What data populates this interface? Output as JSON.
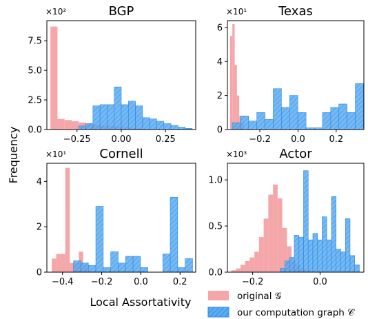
{
  "figure": {
    "ylabel": "Frequency",
    "xlabel": "Local Assortativity",
    "legend": [
      {
        "label": "original 𝒢",
        "color": "#f4a6a9",
        "hatch": false
      },
      {
        "label": "our computation graph 𝒞",
        "color": "#5aaef5",
        "hatch": true
      }
    ]
  },
  "colors": {
    "original_fill": "#f4a6a9",
    "ours_fill": "#5aaef5",
    "ours_edge": "#2e86de",
    "hatch": "#2a7fd8"
  },
  "chart_data": [
    {
      "type": "bar",
      "title": "BGP",
      "multiplier": "×10²",
      "xlim": [
        -0.42,
        0.42
      ],
      "ylim": [
        0,
        9.2
      ],
      "xticks": [
        -0.25,
        0.0,
        0.25
      ],
      "xtick_labels": [
        "−0.25",
        "0.00",
        "0.25"
      ],
      "yticks": [
        0,
        2.5,
        5.0,
        7.5
      ],
      "ytick_labels": [
        "0.0",
        "2.5",
        "5.0",
        "7.5"
      ],
      "series": [
        {
          "name": "original 𝒢",
          "bin_width": 0.04,
          "bins": [
            -0.4,
            -0.36,
            -0.32,
            -0.28,
            -0.24,
            -0.2,
            -0.16,
            -0.12,
            -0.08,
            -0.04,
            0.0,
            0.04,
            0.08
          ],
          "values": [
            8.7,
            0.9,
            0.8,
            0.7,
            0.6,
            0.5,
            0.4,
            0.35,
            0.3,
            0.25,
            0.2,
            0.15,
            0.1
          ]
        },
        {
          "name": "our computation graph 𝒞",
          "bin_width": 0.04,
          "bins": [
            -0.24,
            -0.2,
            -0.16,
            -0.12,
            -0.08,
            -0.04,
            0.0,
            0.04,
            0.08,
            0.12,
            0.16,
            0.2,
            0.24,
            0.28,
            0.32,
            0.36
          ],
          "values": [
            0.3,
            0.5,
            2.0,
            2.1,
            2.1,
            3.6,
            2.1,
            2.4,
            2.0,
            1.0,
            0.9,
            0.7,
            0.5,
            0.35,
            0.2,
            0.1
          ]
        }
      ]
    },
    {
      "type": "bar",
      "title": "Texas",
      "multiplier": "×10¹",
      "xlim": [
        -0.37,
        0.345
      ],
      "ylim": [
        0,
        6.4
      ],
      "xticks": [
        -0.2,
        0.0,
        0.2
      ],
      "xtick_labels": [
        "−0.2",
        "0.0",
        "0.2"
      ],
      "yticks": [
        0,
        2,
        4,
        6
      ],
      "ytick_labels": [
        "0",
        "2",
        "4",
        "6"
      ],
      "series": [
        {
          "name": "original 𝒢",
          "bin_width": 0.012,
          "bins": [
            -0.356,
            -0.344,
            -0.332,
            -0.32,
            -0.308,
            -0.296
          ],
          "values": [
            5.5,
            6.2,
            3.8,
            2.0,
            0.8,
            0.4
          ]
        },
        {
          "name": "our computation graph 𝒞",
          "bin_width": 0.043,
          "bins": [
            -0.345,
            -0.302,
            -0.259,
            -0.216,
            -0.173,
            -0.13,
            -0.087,
            -0.044,
            -0.001,
            0.042,
            0.085,
            0.128,
            0.171,
            0.214,
            0.257,
            0.3
          ],
          "values": [
            0.4,
            0.8,
            0.5,
            1.0,
            0.6,
            2.4,
            1.3,
            2.0,
            1.0,
            0.1,
            0.1,
            1.0,
            1.3,
            1.5,
            1.0,
            2.7
          ]
        }
      ]
    },
    {
      "type": "bar",
      "title": "Cornell",
      "multiplier": "×10¹",
      "xlim": [
        -0.48,
        0.28
      ],
      "ylim": [
        0,
        4.8
      ],
      "xticks": [
        -0.4,
        -0.2,
        0.0,
        0.2
      ],
      "xtick_labels": [
        "−0.4",
        "−0.2",
        "0.0",
        "0.2"
      ],
      "yticks": [
        0,
        2,
        4
      ],
      "ytick_labels": [
        "0",
        "2",
        "4"
      ],
      "series": [
        {
          "name": "original 𝒢",
          "bin_width": 0.023,
          "bins": [
            -0.455,
            -0.432,
            -0.409,
            -0.386,
            -0.363,
            -0.34,
            -0.317,
            -0.294
          ],
          "values": [
            0.6,
            0.8,
            0.8,
            4.6,
            0.4,
            0.4,
            0.9,
            0.3
          ]
        },
        {
          "name": "our computation graph 𝒞",
          "bin_width": 0.038,
          "bins": [
            -0.344,
            -0.306,
            -0.268,
            -0.23,
            -0.192,
            -0.154,
            -0.116,
            -0.078,
            -0.04,
            -0.002,
            0.036,
            0.074,
            0.112,
            0.15,
            0.188,
            0.226
          ],
          "values": [
            0.5,
            0.4,
            0.3,
            2.9,
            0.2,
            0.9,
            0.4,
            0.7,
            0.7,
            0.2,
            0.0,
            0.0,
            0.8,
            3.3,
            0.2,
            0.6
          ]
        }
      ]
    },
    {
      "type": "bar",
      "title": "Actor",
      "multiplier": "×10³",
      "xlim": [
        -0.275,
        0.13
      ],
      "ylim": [
        0,
        1.18
      ],
      "xticks": [
        -0.2,
        0.0
      ],
      "xtick_labels": [
        "−0.2",
        "0.0"
      ],
      "yticks": [
        0,
        0.5,
        1.0
      ],
      "ytick_labels": [
        "0.0",
        "0.5",
        "1.0"
      ],
      "series": [
        {
          "name": "original 𝒢",
          "bin_width": 0.0138,
          "bins": [
            -0.264,
            -0.2502,
            -0.2364,
            -0.2226,
            -0.2088,
            -0.195,
            -0.1812,
            -0.1674,
            -0.1536,
            -0.1398,
            -0.126,
            -0.1122,
            -0.0984,
            -0.086,
            -0.072,
            -0.058,
            -0.044,
            -0.03
          ],
          "values": [
            0.02,
            0.04,
            0.08,
            0.12,
            0.16,
            0.22,
            0.38,
            0.58,
            0.84,
            0.95,
            0.8,
            0.48,
            0.28,
            0.12,
            0.08,
            0.04,
            0.02,
            0.01
          ]
        },
        {
          "name": "our computation graph 𝒞",
          "bin_width": 0.0138,
          "bins": [
            -0.118,
            -0.1042,
            -0.0904,
            -0.0766,
            -0.0628,
            -0.049,
            -0.0352,
            -0.0214,
            -0.0076,
            0.0062,
            0.02,
            0.0338,
            0.0476,
            0.0614,
            0.0752,
            0.089,
            0.1028
          ],
          "values": [
            0.04,
            0.12,
            0.16,
            0.4,
            0.38,
            1.1,
            0.35,
            0.42,
            0.35,
            0.6,
            0.35,
            0.82,
            0.25,
            0.22,
            0.58,
            0.18,
            0.08
          ]
        }
      ]
    }
  ]
}
